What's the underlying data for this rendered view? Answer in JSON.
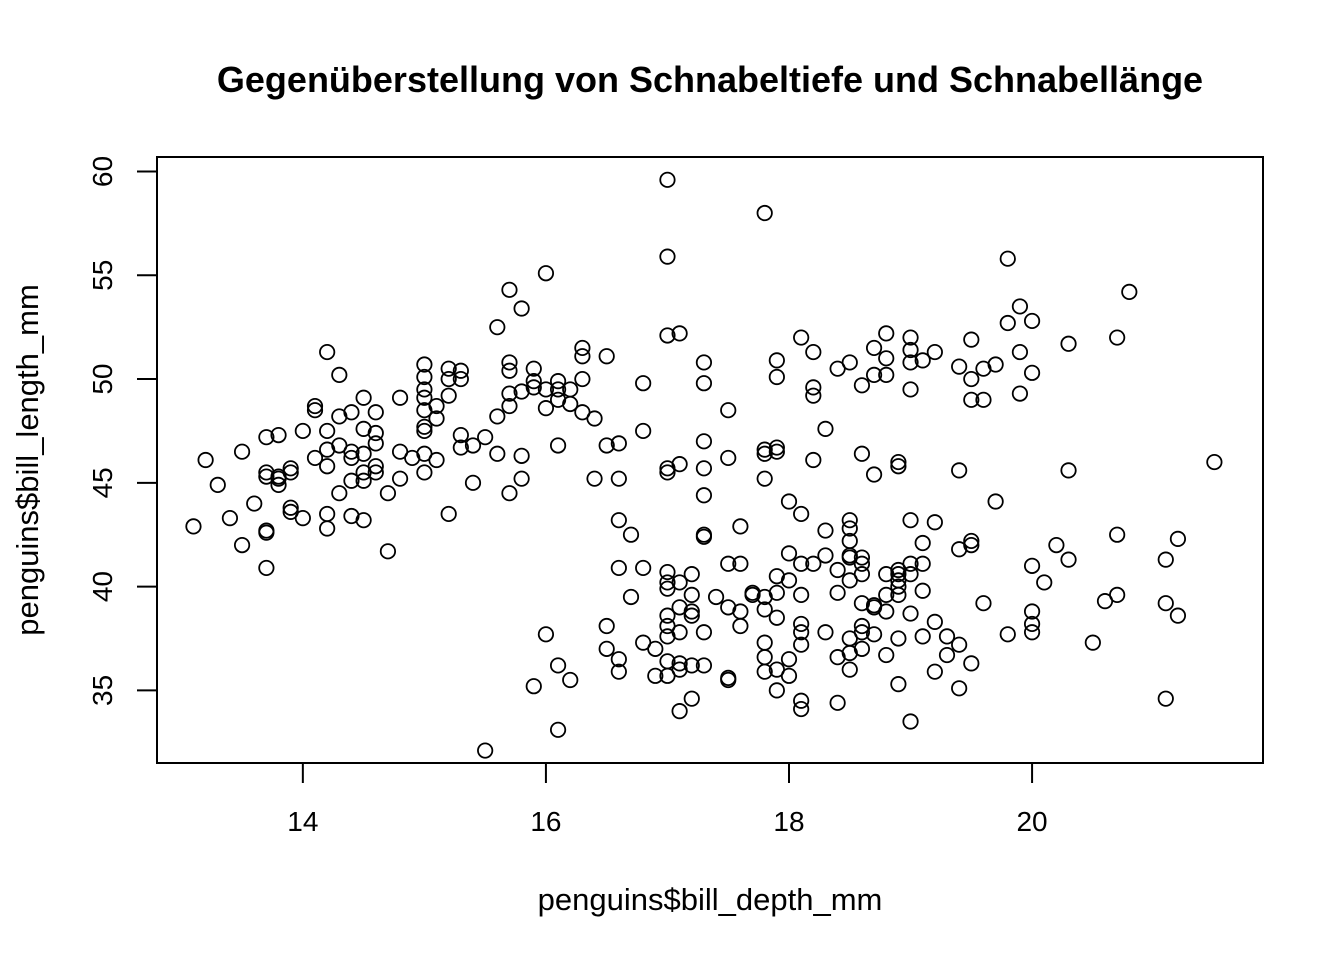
{
  "chart_data": {
    "type": "scatter",
    "title": "Gegenüberstellung von Schnabeltiefe und Schnabellänge",
    "xlabel": "penguins$bill_depth_mm",
    "ylabel": "penguins$bill_length_mm",
    "xlim": [
      12.8,
      21.9
    ],
    "ylim": [
      31.5,
      60.7
    ],
    "xticks": [
      14,
      16,
      18,
      20
    ],
    "yticks": [
      35,
      40,
      45,
      50,
      55,
      60
    ],
    "grid": false,
    "legend": "none",
    "marker": "open-circle",
    "points": [
      [
        13.1,
        42.9
      ],
      [
        13.2,
        46.1
      ],
      [
        13.3,
        44.9
      ],
      [
        13.4,
        43.3
      ],
      [
        13.5,
        42.0
      ],
      [
        13.5,
        46.5
      ],
      [
        13.6,
        44.0
      ],
      [
        13.7,
        40.9
      ],
      [
        13.7,
        42.6
      ],
      [
        13.7,
        42.7
      ],
      [
        13.7,
        45.3
      ],
      [
        13.7,
        45.5
      ],
      [
        13.7,
        47.2
      ],
      [
        13.8,
        44.9
      ],
      [
        13.8,
        45.2
      ],
      [
        13.8,
        45.3
      ],
      [
        13.8,
        47.3
      ],
      [
        13.9,
        43.6
      ],
      [
        13.9,
        43.8
      ],
      [
        13.9,
        45.5
      ],
      [
        13.9,
        45.7
      ],
      [
        14.0,
        43.3
      ],
      [
        14.0,
        47.5
      ],
      [
        14.1,
        46.2
      ],
      [
        14.1,
        48.5
      ],
      [
        14.1,
        48.7
      ],
      [
        14.2,
        42.8
      ],
      [
        14.2,
        43.5
      ],
      [
        14.2,
        45.8
      ],
      [
        14.2,
        46.6
      ],
      [
        14.2,
        47.5
      ],
      [
        14.2,
        51.3
      ],
      [
        14.3,
        44.5
      ],
      [
        14.3,
        46.8
      ],
      [
        14.3,
        48.2
      ],
      [
        14.3,
        50.2
      ],
      [
        14.4,
        43.4
      ],
      [
        14.4,
        45.1
      ],
      [
        14.4,
        46.2
      ],
      [
        14.4,
        46.5
      ],
      [
        14.4,
        48.4
      ],
      [
        14.5,
        43.2
      ],
      [
        14.5,
        45.1
      ],
      [
        14.5,
        45.5
      ],
      [
        14.5,
        46.4
      ],
      [
        14.5,
        47.6
      ],
      [
        14.5,
        49.1
      ],
      [
        14.6,
        45.5
      ],
      [
        14.6,
        45.8
      ],
      [
        14.6,
        46.9
      ],
      [
        14.6,
        47.4
      ],
      [
        14.6,
        48.4
      ],
      [
        14.7,
        41.7
      ],
      [
        14.7,
        44.5
      ],
      [
        14.8,
        45.2
      ],
      [
        14.8,
        46.5
      ],
      [
        14.8,
        49.1
      ],
      [
        14.9,
        46.2
      ],
      [
        15.0,
        45.5
      ],
      [
        15.0,
        46.4
      ],
      [
        15.0,
        47.5
      ],
      [
        15.0,
        47.7
      ],
      [
        15.0,
        48.5
      ],
      [
        15.0,
        49.1
      ],
      [
        15.0,
        49.5
      ],
      [
        15.0,
        50.1
      ],
      [
        15.0,
        50.7
      ],
      [
        15.1,
        46.1
      ],
      [
        15.1,
        48.1
      ],
      [
        15.1,
        48.7
      ],
      [
        15.2,
        43.5
      ],
      [
        15.2,
        49.2
      ],
      [
        15.2,
        50.0
      ],
      [
        15.2,
        50.5
      ],
      [
        15.3,
        46.7
      ],
      [
        15.3,
        47.3
      ],
      [
        15.3,
        50.0
      ],
      [
        15.3,
        50.4
      ],
      [
        15.4,
        45.0
      ],
      [
        15.4,
        46.8
      ],
      [
        15.5,
        32.1
      ],
      [
        15.5,
        47.2
      ],
      [
        15.6,
        46.4
      ],
      [
        15.6,
        48.2
      ],
      [
        15.6,
        52.5
      ],
      [
        15.7,
        44.5
      ],
      [
        15.7,
        48.7
      ],
      [
        15.7,
        49.3
      ],
      [
        15.7,
        50.4
      ],
      [
        15.7,
        50.8
      ],
      [
        15.7,
        54.3
      ],
      [
        15.8,
        45.2
      ],
      [
        15.8,
        46.3
      ],
      [
        15.8,
        49.4
      ],
      [
        15.8,
        53.4
      ],
      [
        15.9,
        35.2
      ],
      [
        15.9,
        49.6
      ],
      [
        15.9,
        49.9
      ],
      [
        15.9,
        50.5
      ],
      [
        16.0,
        37.7
      ],
      [
        16.0,
        48.6
      ],
      [
        16.0,
        49.5
      ],
      [
        16.0,
        55.1
      ],
      [
        16.1,
        33.1
      ],
      [
        16.1,
        36.2
      ],
      [
        16.1,
        46.8
      ],
      [
        16.1,
        49.0
      ],
      [
        16.1,
        49.5
      ],
      [
        16.1,
        49.9
      ],
      [
        16.2,
        35.5
      ],
      [
        16.2,
        48.8
      ],
      [
        16.2,
        49.5
      ],
      [
        16.3,
        48.4
      ],
      [
        16.3,
        50.0
      ],
      [
        16.3,
        51.1
      ],
      [
        16.3,
        51.5
      ],
      [
        16.4,
        45.2
      ],
      [
        16.4,
        48.1
      ],
      [
        16.5,
        37.0
      ],
      [
        16.5,
        38.1
      ],
      [
        16.5,
        46.8
      ],
      [
        16.5,
        51.1
      ],
      [
        16.6,
        35.9
      ],
      [
        16.6,
        36.5
      ],
      [
        16.6,
        40.9
      ],
      [
        16.6,
        43.2
      ],
      [
        16.6,
        45.2
      ],
      [
        16.6,
        46.9
      ],
      [
        16.7,
        39.5
      ],
      [
        16.7,
        42.5
      ],
      [
        16.8,
        37.3
      ],
      [
        16.8,
        40.9
      ],
      [
        16.8,
        47.5
      ],
      [
        16.8,
        49.8
      ],
      [
        16.9,
        35.7
      ],
      [
        16.9,
        37.0
      ],
      [
        17.0,
        35.7
      ],
      [
        17.0,
        36.4
      ],
      [
        17.0,
        37.6
      ],
      [
        17.0,
        38.1
      ],
      [
        17.0,
        38.6
      ],
      [
        17.0,
        39.9
      ],
      [
        17.0,
        40.2
      ],
      [
        17.0,
        40.7
      ],
      [
        17.0,
        45.5
      ],
      [
        17.0,
        45.7
      ],
      [
        17.0,
        52.1
      ],
      [
        17.0,
        55.9
      ],
      [
        17.0,
        59.6
      ],
      [
        17.1,
        34.0
      ],
      [
        17.1,
        36.0
      ],
      [
        17.1,
        36.3
      ],
      [
        17.1,
        37.8
      ],
      [
        17.1,
        39.0
      ],
      [
        17.1,
        40.2
      ],
      [
        17.1,
        45.9
      ],
      [
        17.1,
        52.2
      ],
      [
        17.2,
        34.6
      ],
      [
        17.2,
        36.2
      ],
      [
        17.2,
        38.6
      ],
      [
        17.2,
        38.8
      ],
      [
        17.2,
        39.6
      ],
      [
        17.2,
        40.6
      ],
      [
        17.3,
        36.2
      ],
      [
        17.3,
        37.8
      ],
      [
        17.3,
        42.4
      ],
      [
        17.3,
        42.5
      ],
      [
        17.3,
        44.4
      ],
      [
        17.3,
        45.7
      ],
      [
        17.3,
        47.0
      ],
      [
        17.3,
        49.8
      ],
      [
        17.3,
        50.8
      ],
      [
        17.4,
        39.5
      ],
      [
        17.5,
        35.5
      ],
      [
        17.5,
        35.6
      ],
      [
        17.5,
        39.0
      ],
      [
        17.5,
        41.1
      ],
      [
        17.5,
        46.2
      ],
      [
        17.5,
        48.5
      ],
      [
        17.6,
        38.1
      ],
      [
        17.6,
        38.8
      ],
      [
        17.6,
        41.1
      ],
      [
        17.6,
        42.9
      ],
      [
        17.7,
        39.6
      ],
      [
        17.7,
        39.7
      ],
      [
        17.8,
        35.9
      ],
      [
        17.8,
        36.6
      ],
      [
        17.8,
        37.3
      ],
      [
        17.8,
        38.9
      ],
      [
        17.8,
        39.5
      ],
      [
        17.8,
        45.2
      ],
      [
        17.8,
        46.4
      ],
      [
        17.8,
        46.6
      ],
      [
        17.8,
        58.0
      ],
      [
        17.9,
        35.0
      ],
      [
        17.9,
        36.0
      ],
      [
        17.9,
        38.5
      ],
      [
        17.9,
        39.7
      ],
      [
        17.9,
        40.5
      ],
      [
        17.9,
        46.5
      ],
      [
        17.9,
        46.7
      ],
      [
        17.9,
        50.1
      ],
      [
        17.9,
        50.9
      ],
      [
        18.0,
        35.7
      ],
      [
        18.0,
        36.5
      ],
      [
        18.0,
        40.3
      ],
      [
        18.0,
        41.6
      ],
      [
        18.0,
        44.1
      ],
      [
        18.1,
        34.1
      ],
      [
        18.1,
        34.5
      ],
      [
        18.1,
        37.2
      ],
      [
        18.1,
        37.8
      ],
      [
        18.1,
        38.2
      ],
      [
        18.1,
        39.6
      ],
      [
        18.1,
        41.1
      ],
      [
        18.1,
        43.5
      ],
      [
        18.1,
        52.0
      ],
      [
        18.2,
        41.1
      ],
      [
        18.2,
        46.1
      ],
      [
        18.2,
        49.2
      ],
      [
        18.2,
        49.6
      ],
      [
        18.2,
        51.3
      ],
      [
        18.3,
        37.8
      ],
      [
        18.3,
        41.5
      ],
      [
        18.3,
        42.7
      ],
      [
        18.3,
        47.6
      ],
      [
        18.4,
        34.4
      ],
      [
        18.4,
        36.6
      ],
      [
        18.4,
        39.7
      ],
      [
        18.4,
        40.8
      ],
      [
        18.4,
        50.5
      ],
      [
        18.5,
        36.0
      ],
      [
        18.5,
        36.8
      ],
      [
        18.5,
        37.5
      ],
      [
        18.5,
        40.3
      ],
      [
        18.5,
        41.4
      ],
      [
        18.5,
        41.5
      ],
      [
        18.5,
        42.2
      ],
      [
        18.5,
        42.8
      ],
      [
        18.5,
        43.2
      ],
      [
        18.5,
        50.8
      ],
      [
        18.6,
        37.0
      ],
      [
        18.6,
        37.8
      ],
      [
        18.6,
        38.1
      ],
      [
        18.6,
        39.2
      ],
      [
        18.6,
        40.6
      ],
      [
        18.6,
        41.1
      ],
      [
        18.6,
        41.4
      ],
      [
        18.6,
        46.4
      ],
      [
        18.6,
        49.7
      ],
      [
        18.7,
        37.7
      ],
      [
        18.7,
        39.0
      ],
      [
        18.7,
        39.1
      ],
      [
        18.7,
        45.4
      ],
      [
        18.7,
        50.2
      ],
      [
        18.7,
        51.5
      ],
      [
        18.8,
        36.7
      ],
      [
        18.8,
        38.8
      ],
      [
        18.8,
        39.6
      ],
      [
        18.8,
        40.6
      ],
      [
        18.8,
        50.2
      ],
      [
        18.8,
        51.0
      ],
      [
        18.8,
        52.2
      ],
      [
        18.9,
        35.3
      ],
      [
        18.9,
        37.5
      ],
      [
        18.9,
        39.6
      ],
      [
        18.9,
        40.0
      ],
      [
        18.9,
        40.3
      ],
      [
        18.9,
        40.6
      ],
      [
        18.9,
        40.8
      ],
      [
        18.9,
        45.8
      ],
      [
        18.9,
        46.0
      ],
      [
        19.0,
        33.5
      ],
      [
        19.0,
        38.7
      ],
      [
        19.0,
        40.6
      ],
      [
        19.0,
        41.1
      ],
      [
        19.0,
        43.2
      ],
      [
        19.0,
        49.5
      ],
      [
        19.0,
        50.8
      ],
      [
        19.0,
        51.4
      ],
      [
        19.0,
        52.0
      ],
      [
        19.1,
        37.6
      ],
      [
        19.1,
        39.8
      ],
      [
        19.1,
        41.1
      ],
      [
        19.1,
        42.1
      ],
      [
        19.1,
        50.9
      ],
      [
        19.2,
        35.9
      ],
      [
        19.2,
        38.3
      ],
      [
        19.2,
        43.1
      ],
      [
        19.2,
        51.3
      ],
      [
        19.3,
        36.7
      ],
      [
        19.3,
        37.6
      ],
      [
        19.4,
        35.1
      ],
      [
        19.4,
        37.2
      ],
      [
        19.4,
        41.8
      ],
      [
        19.4,
        45.6
      ],
      [
        19.4,
        50.6
      ],
      [
        19.5,
        36.3
      ],
      [
        19.5,
        42.0
      ],
      [
        19.5,
        42.2
      ],
      [
        19.5,
        49.0
      ],
      [
        19.5,
        50.0
      ],
      [
        19.5,
        51.9
      ],
      [
        19.6,
        39.2
      ],
      [
        19.6,
        49.0
      ],
      [
        19.6,
        50.5
      ],
      [
        19.7,
        44.1
      ],
      [
        19.7,
        50.7
      ],
      [
        19.8,
        37.7
      ],
      [
        19.8,
        52.7
      ],
      [
        19.8,
        55.8
      ],
      [
        19.9,
        49.3
      ],
      [
        19.9,
        51.3
      ],
      [
        19.9,
        53.5
      ],
      [
        20.0,
        37.8
      ],
      [
        20.0,
        38.2
      ],
      [
        20.0,
        38.8
      ],
      [
        20.0,
        41.0
      ],
      [
        20.0,
        50.3
      ],
      [
        20.0,
        52.8
      ],
      [
        20.1,
        40.2
      ],
      [
        20.2,
        42.0
      ],
      [
        20.3,
        41.3
      ],
      [
        20.3,
        45.6
      ],
      [
        20.3,
        51.7
      ],
      [
        20.5,
        37.3
      ],
      [
        20.6,
        39.3
      ],
      [
        20.7,
        39.6
      ],
      [
        20.7,
        42.5
      ],
      [
        20.7,
        52.0
      ],
      [
        20.8,
        54.2
      ],
      [
        21.1,
        34.6
      ],
      [
        21.1,
        39.2
      ],
      [
        21.1,
        41.3
      ],
      [
        21.2,
        38.6
      ],
      [
        21.2,
        42.3
      ],
      [
        21.5,
        46.0
      ]
    ]
  }
}
